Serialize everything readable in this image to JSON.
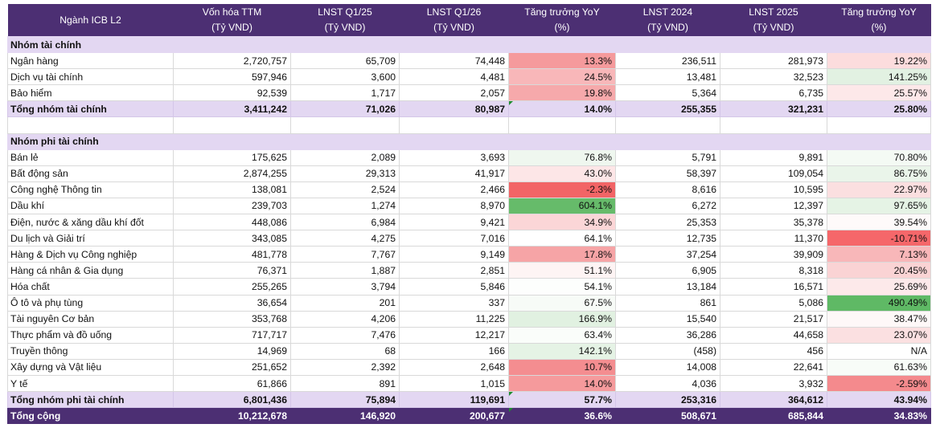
{
  "columns": [
    {
      "l1": "Ngành ICB L2",
      "l2": ""
    },
    {
      "l1": "Vốn hóa TTM",
      "l2": "(Tỷ VND)"
    },
    {
      "l1": "LNST Q1/25",
      "l2": "(Tỷ VND)"
    },
    {
      "l1": "LNST Q1/26",
      "l2": "(Tỷ VND)"
    },
    {
      "l1": "Tăng trưởng YoY",
      "l2": "(%)"
    },
    {
      "l1": "LNST 2024",
      "l2": "(Tỷ VND)"
    },
    {
      "l1": "LNST 2025",
      "l2": "(Tỷ VND)"
    },
    {
      "l1": "Tăng trưởng YoY",
      "l2": "(%)"
    }
  ],
  "rows": [
    {
      "type": "group",
      "cells": [
        "Nhóm tài chính",
        "",
        "",
        "",
        "",
        "",
        "",
        ""
      ],
      "bg": [
        "",
        "",
        "",
        "",
        "",
        "",
        "",
        ""
      ]
    },
    {
      "type": "data",
      "cells": [
        "Ngân hàng",
        "2,720,757",
        "65,709",
        "74,448",
        "13.3%",
        "236,511",
        "281,973",
        "19.22%"
      ],
      "bg": [
        "",
        "",
        "",
        "",
        "#f59a9c",
        "",
        "",
        "#fcdcdd"
      ]
    },
    {
      "type": "data",
      "cells": [
        "Dịch vụ tài chính",
        "597,946",
        "3,600",
        "4,481",
        "24.5%",
        "13,481",
        "32,523",
        "141.25%"
      ],
      "bg": [
        "",
        "",
        "",
        "",
        "#f8b7b9",
        "",
        "",
        "#e2f1e2"
      ]
    },
    {
      "type": "data",
      "cells": [
        "Bảo hiểm",
        "92,539",
        "1,717",
        "2,057",
        "19.8%",
        "5,364",
        "6,735",
        "25.57%"
      ],
      "bg": [
        "",
        "",
        "",
        "",
        "#f6a9ab",
        "",
        "",
        "#fde8e9"
      ]
    },
    {
      "type": "subtotal",
      "cells": [
        "Tổng nhóm tài chính",
        "3,411,242",
        "71,026",
        "80,987",
        "14.0%",
        "255,355",
        "321,231",
        "25.80%"
      ],
      "bg": [
        "",
        "",
        "",
        "",
        "",
        "",
        "",
        ""
      ],
      "tri": 4
    },
    {
      "type": "blank",
      "cells": [
        "",
        "",
        "",
        "",
        "",
        "",
        "",
        ""
      ],
      "bg": [
        "",
        "",
        "",
        "",
        "",
        "",
        "",
        ""
      ]
    },
    {
      "type": "group",
      "cells": [
        "Nhóm phi tài chính",
        "",
        "",
        "",
        "",
        "",
        "",
        ""
      ],
      "bg": [
        "",
        "",
        "",
        "",
        "",
        "",
        "",
        ""
      ]
    },
    {
      "type": "data",
      "cells": [
        "Bán lẻ",
        "175,625",
        "2,089",
        "3,693",
        "76.8%",
        "5,791",
        "9,891",
        "70.80%"
      ],
      "bg": [
        "",
        "",
        "",
        "",
        "#eff7ef",
        "",
        "",
        "#f4faf4"
      ]
    },
    {
      "type": "data",
      "cells": [
        "Bất động sản",
        "2,874,255",
        "29,313",
        "41,917",
        "43.0%",
        "58,397",
        "109,054",
        "86.75%"
      ],
      "bg": [
        "",
        "",
        "",
        "",
        "#fde6e7",
        "",
        "",
        "#eaf5ea"
      ]
    },
    {
      "type": "data",
      "cells": [
        "Công nghệ Thông tin",
        "138,081",
        "2,524",
        "2,466",
        "-2.3%",
        "8,616",
        "10,595",
        "22.97%"
      ],
      "bg": [
        "",
        "",
        "",
        "",
        "#f26466",
        "",
        "",
        "#fbdfe0"
      ]
    },
    {
      "type": "data",
      "cells": [
        "Dầu khí",
        "239,703",
        "1,274",
        "8,970",
        "604.1%",
        "6,272",
        "12,397",
        "97.65%"
      ],
      "bg": [
        "",
        "",
        "",
        "",
        "#66bb6a",
        "",
        "",
        "#e5f3e5"
      ]
    },
    {
      "type": "data",
      "cells": [
        "Điện, nước & xăng dầu khí đốt",
        "448,086",
        "6,984",
        "9,421",
        "34.9%",
        "25,353",
        "35,378",
        "39.54%"
      ],
      "bg": [
        "",
        "",
        "",
        "",
        "#fbd6d7",
        "",
        "",
        "#fefafa"
      ]
    },
    {
      "type": "data",
      "cells": [
        "Du lịch và Giải trí",
        "343,085",
        "4,275",
        "7,016",
        "64.1%",
        "12,735",
        "11,370",
        "-10.71%"
      ],
      "bg": [
        "",
        "",
        "",
        "",
        "#ffffff",
        "",
        "",
        "#f5676a"
      ]
    },
    {
      "type": "data",
      "cells": [
        "Hàng & Dịch vụ Công nghiệp",
        "481,778",
        "7,767",
        "9,149",
        "17.8%",
        "37,254",
        "39,909",
        "7.13%"
      ],
      "bg": [
        "",
        "",
        "",
        "",
        "#f6a4a6",
        "",
        "",
        "#f8b7b9"
      ]
    },
    {
      "type": "data",
      "cells": [
        "Hàng cá nhân & Gia dụng",
        "76,371",
        "1,887",
        "2,851",
        "51.1%",
        "6,905",
        "8,318",
        "20.45%"
      ],
      "bg": [
        "",
        "",
        "",
        "",
        "#fef4f4",
        "",
        "",
        "#fad3d4"
      ]
    },
    {
      "type": "data",
      "cells": [
        "Hóa chất",
        "255,265",
        "3,794",
        "5,846",
        "54.1%",
        "13,184",
        "16,571",
        "25.69%"
      ],
      "bg": [
        "",
        "",
        "",
        "",
        "#fdfefd",
        "",
        "",
        "#fde9ea"
      ]
    },
    {
      "type": "data",
      "cells": [
        "Ô tô và phụ tùng",
        "36,654",
        "201",
        "337",
        "67.5%",
        "861",
        "5,086",
        "490.49%"
      ],
      "bg": [
        "",
        "",
        "",
        "",
        "#f7fbf7",
        "",
        "",
        "#5fb965"
      ]
    },
    {
      "type": "data",
      "cells": [
        "Tài nguyên Cơ bản",
        "353,768",
        "4,206",
        "11,225",
        "166.9%",
        "15,540",
        "21,517",
        "38.47%"
      ],
      "bg": [
        "",
        "",
        "",
        "",
        "#e1f1e1",
        "",
        "",
        "#fef8f8"
      ]
    },
    {
      "type": "data",
      "cells": [
        "Thực phẩm và đồ uống",
        "717,717",
        "7,476",
        "12,217",
        "63.4%",
        "36,286",
        "44,658",
        "23.07%"
      ],
      "bg": [
        "",
        "",
        "",
        "",
        "#fafdfa",
        "",
        "",
        "#fbe0e1"
      ]
    },
    {
      "type": "data",
      "cells": [
        "Truyền thông",
        "14,969",
        "68",
        "166",
        "142.1%",
        "(458)",
        "456",
        "N/A"
      ],
      "bg": [
        "",
        "",
        "",
        "",
        "#e5f3e5",
        "",
        "",
        ""
      ]
    },
    {
      "type": "data",
      "cells": [
        "Xây dựng và Vật liệu",
        "251,652",
        "2,392",
        "2,648",
        "10.7%",
        "14,008",
        "22,641",
        "61.63%"
      ],
      "bg": [
        "",
        "",
        "",
        "",
        "#f48d90",
        "",
        "",
        "#f8fcf8"
      ]
    },
    {
      "type": "data",
      "cells": [
        "Y tế",
        "61,866",
        "891",
        "1,015",
        "14.0%",
        "4,036",
        "3,932",
        "-2.59%"
      ],
      "bg": [
        "",
        "",
        "",
        "",
        "#f59a9c",
        "",
        "",
        "#f48a8d"
      ]
    },
    {
      "type": "subtotal",
      "cells": [
        "Tổng nhóm phi tài chính",
        "6,801,436",
        "75,894",
        "119,691",
        "57.7%",
        "253,316",
        "364,612",
        "43.94%"
      ],
      "bg": [
        "",
        "",
        "",
        "",
        "",
        "",
        "",
        ""
      ],
      "tri": 4
    },
    {
      "type": "total",
      "cells": [
        "Tổng cộng",
        "10,212,678",
        "146,920",
        "200,677",
        "36.6%",
        "508,671",
        "685,844",
        "34.83%"
      ],
      "bg": [
        "",
        "",
        "",
        "",
        "",
        "",
        "",
        ""
      ],
      "tri": 4
    }
  ]
}
